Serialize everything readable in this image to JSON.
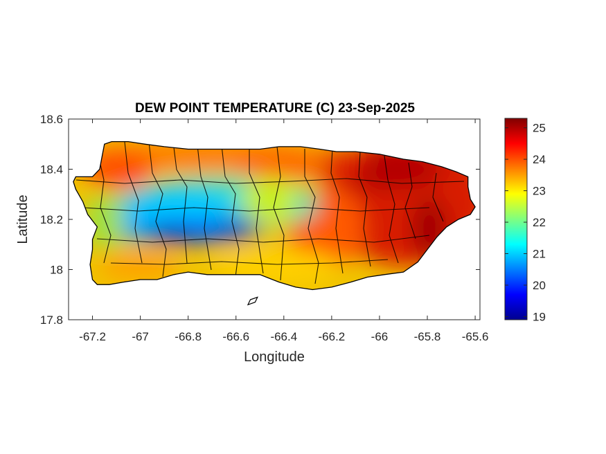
{
  "map": {
    "title": "DEW POINT TEMPERATURE (C) 23-Sep-2025",
    "xlabel": "Longitude",
    "ylabel": "Latitude",
    "xlim": [
      -67.3,
      -65.58
    ],
    "ylim": [
      17.8,
      18.6
    ],
    "x_ticks": [
      {
        "value": -67.2,
        "label": "-67.2"
      },
      {
        "value": -67.0,
        "label": "-67"
      },
      {
        "value": -66.8,
        "label": "-66.8"
      },
      {
        "value": -66.6,
        "label": "-66.6"
      },
      {
        "value": -66.4,
        "label": "-66.4"
      },
      {
        "value": -66.2,
        "label": "-66.2"
      },
      {
        "value": -66.0,
        "label": "-66"
      },
      {
        "value": -65.8,
        "label": "-65.8"
      },
      {
        "value": -65.6,
        "label": "-65.6"
      }
    ],
    "y_ticks": [
      {
        "value": 17.8,
        "label": "17.8"
      },
      {
        "value": 18.0,
        "label": "18"
      },
      {
        "value": 18.2,
        "label": "18.2"
      },
      {
        "value": 18.4,
        "label": "18.4"
      },
      {
        "value": 18.6,
        "label": "18.6"
      }
    ],
    "colorbar": {
      "min": 18.9,
      "max": 25.3,
      "colormap": "jet",
      "ticks": [
        {
          "value": 19,
          "label": "19"
        },
        {
          "value": 20,
          "label": "20"
        },
        {
          "value": 21,
          "label": "21"
        },
        {
          "value": 22,
          "label": "22"
        },
        {
          "value": 23,
          "label": "23"
        },
        {
          "value": 24,
          "label": "24"
        },
        {
          "value": 25,
          "label": "25"
        }
      ]
    },
    "island_outline": [
      [
        -67.27,
        18.37
      ],
      [
        -67.24,
        18.37
      ],
      [
        -67.2,
        18.37
      ],
      [
        -67.17,
        18.4
      ],
      [
        -67.16,
        18.45
      ],
      [
        -67.15,
        18.5
      ],
      [
        -67.12,
        18.51
      ],
      [
        -67.05,
        18.51
      ],
      [
        -66.98,
        18.5
      ],
      [
        -66.9,
        18.49
      ],
      [
        -66.8,
        18.48
      ],
      [
        -66.7,
        18.48
      ],
      [
        -66.6,
        18.48
      ],
      [
        -66.5,
        18.48
      ],
      [
        -66.42,
        18.49
      ],
      [
        -66.33,
        18.49
      ],
      [
        -66.25,
        18.48
      ],
      [
        -66.18,
        18.47
      ],
      [
        -66.1,
        18.47
      ],
      [
        -66.0,
        18.46
      ],
      [
        -65.9,
        18.44
      ],
      [
        -65.82,
        18.43
      ],
      [
        -65.74,
        18.41
      ],
      [
        -65.68,
        18.39
      ],
      [
        -65.63,
        18.37
      ],
      [
        -65.63,
        18.33
      ],
      [
        -65.62,
        18.28
      ],
      [
        -65.6,
        18.25
      ],
      [
        -65.62,
        18.22
      ],
      [
        -65.67,
        18.2
      ],
      [
        -65.72,
        18.17
      ],
      [
        -65.76,
        18.13
      ],
      [
        -65.8,
        18.08
      ],
      [
        -65.84,
        18.03
      ],
      [
        -65.9,
        17.99
      ],
      [
        -65.98,
        17.98
      ],
      [
        -66.05,
        17.97
      ],
      [
        -66.12,
        17.95
      ],
      [
        -66.2,
        17.93
      ],
      [
        -66.28,
        17.92
      ],
      [
        -66.35,
        17.93
      ],
      [
        -66.42,
        17.95
      ],
      [
        -66.5,
        17.98
      ],
      [
        -66.58,
        17.98
      ],
      [
        -66.65,
        17.98
      ],
      [
        -66.72,
        17.98
      ],
      [
        -66.8,
        17.99
      ],
      [
        -66.86,
        17.98
      ],
      [
        -66.93,
        17.96
      ],
      [
        -67.0,
        17.96
      ],
      [
        -67.07,
        17.95
      ],
      [
        -67.13,
        17.94
      ],
      [
        -67.18,
        17.94
      ],
      [
        -67.2,
        17.96
      ],
      [
        -67.21,
        18.02
      ],
      [
        -67.2,
        18.08
      ],
      [
        -67.2,
        18.12
      ],
      [
        -67.18,
        18.17
      ],
      [
        -67.22,
        18.22
      ],
      [
        -67.24,
        18.27
      ],
      [
        -67.27,
        18.32
      ],
      [
        -67.28,
        18.35
      ]
    ],
    "offshore_islet": [
      [
        -66.54,
        17.88
      ],
      [
        -66.51,
        17.89
      ],
      [
        -66.52,
        17.87
      ],
      [
        -66.55,
        17.86
      ]
    ]
  }
}
